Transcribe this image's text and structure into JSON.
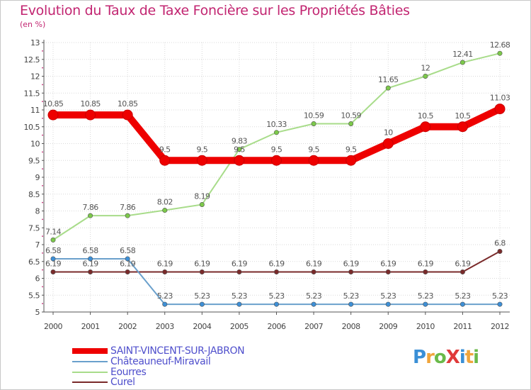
{
  "title": "Evolution du Taux de Taxe Foncière sur les Propriétés Bâties",
  "unit_label": "(en %)",
  "logo": {
    "text": "ProXiti",
    "letters": [
      "P",
      "r",
      "o",
      "X",
      "i",
      "t",
      "i"
    ],
    "colors": [
      "#3a8fd6",
      "#f0a53b",
      "#6aba4a",
      "#e03a3a",
      "#3a8fd6",
      "#f0a53b",
      "#6aba4a"
    ]
  },
  "chart_data": {
    "type": "line",
    "title": "Evolution du Taux de Taxe Foncière sur les Propriétés Bâties",
    "ylabel": "(en %)",
    "xlabel": "",
    "ylim": [
      5,
      13
    ],
    "y_ticks": [
      5,
      5.5,
      6,
      6.5,
      7,
      7.5,
      8,
      8.5,
      9,
      9.5,
      10,
      10.5,
      11,
      11.5,
      12,
      12.5,
      13
    ],
    "x": [
      "2000",
      "2001",
      "2002",
      "2003",
      "2004",
      "2005",
      "2006",
      "2007",
      "2008",
      "2009",
      "2010",
      "2011",
      "2012"
    ],
    "grid": true,
    "legend": "bottom-left",
    "series": [
      {
        "name": "Curel",
        "color": "#7a2a2a",
        "marker_fill": "#7a2a2a",
        "emphasis": false,
        "values": [
          6.19,
          6.19,
          6.19,
          6.19,
          6.19,
          6.19,
          6.19,
          6.19,
          6.19,
          6.19,
          6.19,
          6.19,
          6.8
        ],
        "labels": [
          "6.19",
          "6.19",
          "6.19",
          "6.19",
          "6.19",
          "6.19",
          "6.19",
          "6.19",
          "6.19",
          "6.19",
          "6.19",
          "6.19",
          "6.8"
        ]
      },
      {
        "name": "Châteauneuf-Miravail",
        "color": "#6aa0cc",
        "marker_fill": "#3d8fd6",
        "emphasis": false,
        "values": [
          6.58,
          6.58,
          6.58,
          5.23,
          5.23,
          5.23,
          5.23,
          5.23,
          5.23,
          5.23,
          5.23,
          5.23,
          5.23
        ],
        "labels": [
          "6.58",
          "6.58",
          "6.58",
          "5.23",
          "5.23",
          "5.23",
          "5.23",
          "5.23",
          "5.23",
          "5.23",
          "5.23",
          "5.23",
          "5.23"
        ]
      },
      {
        "name": "Eourres",
        "color": "#a8dc8a",
        "marker_fill": "#7cc94a",
        "emphasis": false,
        "values": [
          7.14,
          7.86,
          7.86,
          8.02,
          8.19,
          9.83,
          10.33,
          10.59,
          10.59,
          11.65,
          12,
          12.41,
          12.68
        ],
        "labels": [
          "7.14",
          "7.86",
          "7.86",
          "8.02",
          "8.19",
          "9.83",
          "10.33",
          "10.59",
          "10.59",
          "11.65",
          "12",
          "12.41",
          "12.68"
        ]
      },
      {
        "name": "SAINT-VINCENT-SUR-JABRON",
        "color": "#ee0000",
        "marker_fill": "#ee0000",
        "emphasis": true,
        "values": [
          10.85,
          10.85,
          10.85,
          9.5,
          9.5,
          9.5,
          9.5,
          9.5,
          9.5,
          10,
          10.5,
          10.5,
          11.03
        ],
        "labels": [
          "10.85",
          "10.85",
          "10.85",
          "9.5",
          "9.5",
          "9.5",
          "9.5",
          "9.5",
          "9.5",
          "10",
          "10.5",
          "10.5",
          "11.03"
        ]
      }
    ],
    "legend_order": [
      "SAINT-VINCENT-SUR-JABRON",
      "Châteauneuf-Miravail",
      "Eourres",
      "Curel"
    ]
  }
}
